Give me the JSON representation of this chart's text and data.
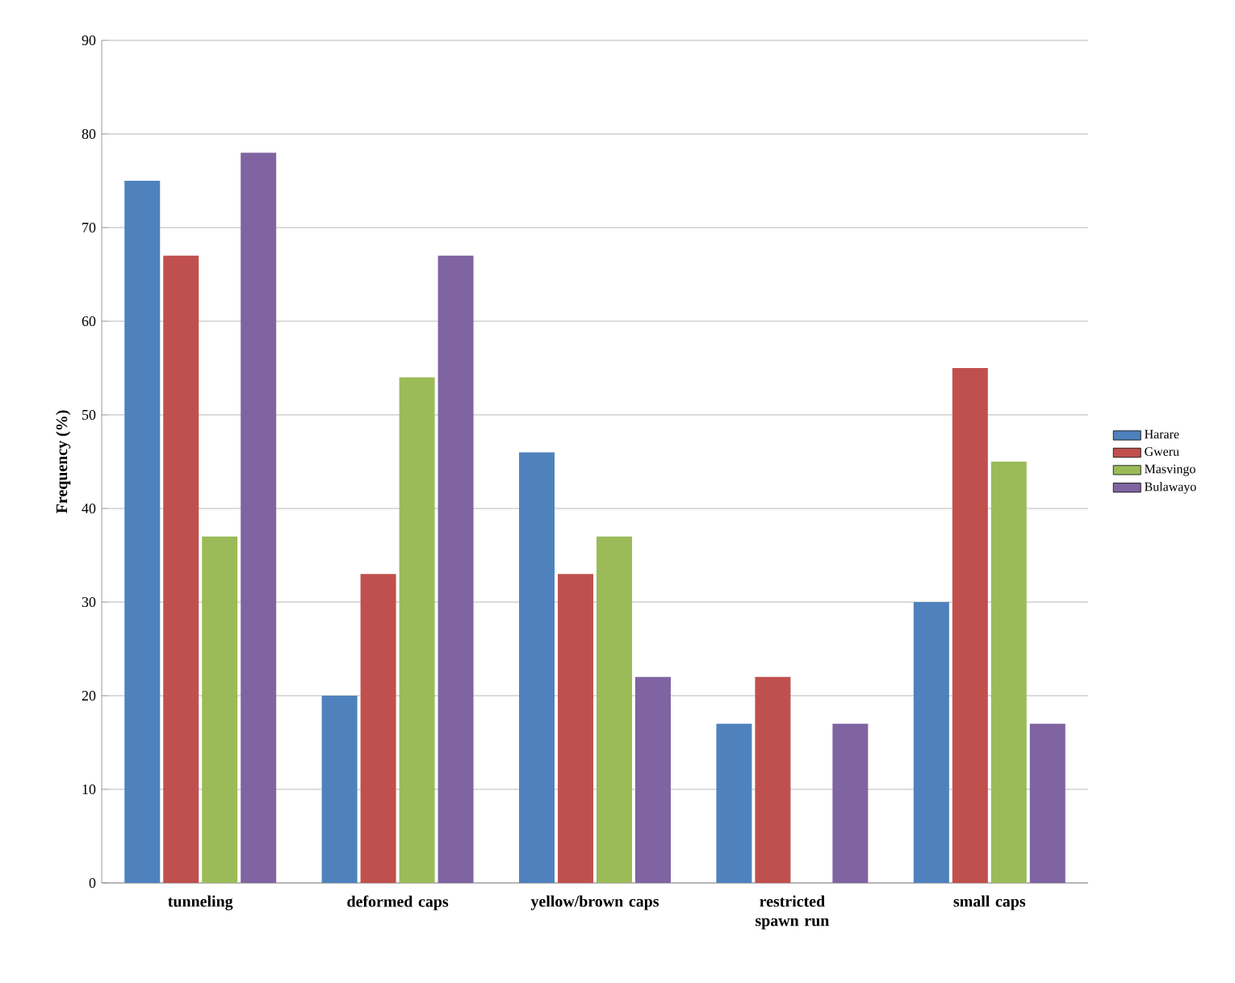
{
  "chart_data": {
    "type": "bar",
    "ylabel": "Frequency (%)",
    "categories": [
      "tunneling",
      "deformed caps",
      "yellow/brown caps",
      "restricted spawn run",
      "small caps"
    ],
    "series": [
      {
        "name": "Harare",
        "color": "#4f81bd",
        "values": [
          75,
          20,
          46,
          17,
          30
        ]
      },
      {
        "name": "Gweru",
        "color": "#c0504d",
        "values": [
          67,
          33,
          33,
          22,
          55
        ]
      },
      {
        "name": "Masvingo",
        "color": "#9bbb59",
        "values": [
          37,
          54,
          37,
          0,
          45
        ]
      },
      {
        "name": "Bulawayo",
        "color": "#8064a2",
        "values": [
          78,
          67,
          22,
          17,
          17
        ]
      }
    ],
    "ylim": [
      0,
      90
    ],
    "yticks": [
      0,
      10,
      20,
      30,
      40,
      50,
      60,
      70,
      80,
      90
    ],
    "grid": "y",
    "legend": "right"
  }
}
